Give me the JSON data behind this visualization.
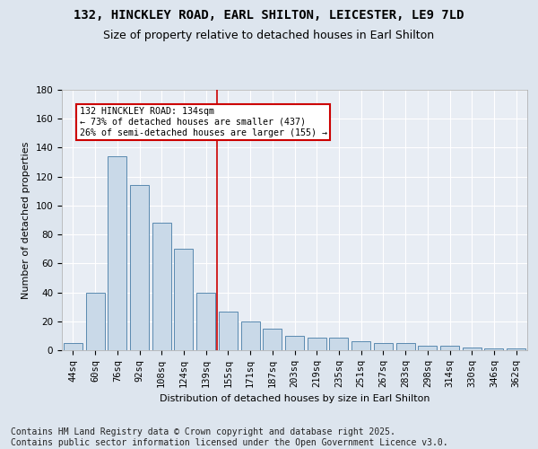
{
  "title": "132, HINCKLEY ROAD, EARL SHILTON, LEICESTER, LE9 7LD",
  "subtitle": "Size of property relative to detached houses in Earl Shilton",
  "xlabel": "Distribution of detached houses by size in Earl Shilton",
  "ylabel": "Number of detached properties",
  "categories": [
    "44sq",
    "60sq",
    "76sq",
    "92sq",
    "108sq",
    "124sq",
    "139sq",
    "155sq",
    "171sq",
    "187sq",
    "203sq",
    "219sq",
    "235sq",
    "251sq",
    "267sq",
    "283sq",
    "298sq",
    "314sq",
    "330sq",
    "346sq",
    "362sq"
  ],
  "values": [
    5,
    40,
    134,
    114,
    88,
    70,
    40,
    27,
    20,
    15,
    10,
    9,
    9,
    6,
    5,
    5,
    3,
    3,
    2,
    1,
    1
  ],
  "bar_color": "#c9d9e8",
  "bar_edge_color": "#5a8ab0",
  "vline_index": 6.5,
  "vline_color": "#cc0000",
  "annotation_line1": "132 HINCKLEY ROAD: 134sqm",
  "annotation_line2": "← 73% of detached houses are smaller (437)",
  "annotation_line3": "26% of semi-detached houses are larger (155) →",
  "annotation_box_color": "#ffffff",
  "annotation_box_edge": "#cc0000",
  "footer": "Contains HM Land Registry data © Crown copyright and database right 2025.\nContains public sector information licensed under the Open Government Licence v3.0.",
  "ylim": [
    0,
    180
  ],
  "yticks": [
    0,
    20,
    40,
    60,
    80,
    100,
    120,
    140,
    160,
    180
  ],
  "bg_color": "#dde5ee",
  "plot_bg_color": "#e8edf4",
  "grid_color": "#ffffff",
  "title_fontsize": 10,
  "subtitle_fontsize": 9,
  "footer_fontsize": 7,
  "axis_label_fontsize": 8,
  "tick_fontsize": 7.5
}
